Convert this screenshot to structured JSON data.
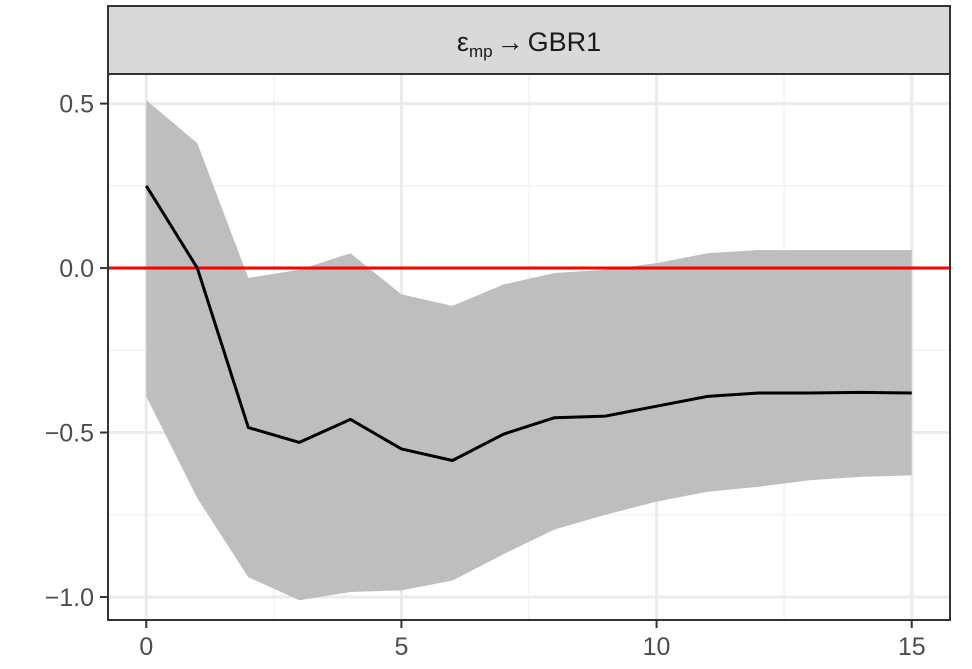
{
  "chart_data": {
    "type": "line",
    "facet_label": {
      "symbol": "ε",
      "subscript": "mp",
      "arrow": "→",
      "target": "GBR1"
    },
    "title": "",
    "xlabel": "",
    "ylabel": "",
    "x": [
      0,
      1,
      2,
      3,
      4,
      5,
      6,
      7,
      8,
      9,
      10,
      11,
      12,
      13,
      14,
      15
    ],
    "series": [
      {
        "values": [
          0.25,
          0.0,
          -0.485,
          -0.53,
          -0.46,
          -0.55,
          -0.585,
          -0.505,
          -0.455,
          -0.45,
          -0.42,
          -0.39,
          -0.38,
          -0.38,
          -0.378,
          -0.38
        ],
        "lower": [
          -0.39,
          -0.7,
          -0.94,
          -1.01,
          -0.985,
          -0.98,
          -0.95,
          -0.87,
          -0.795,
          -0.75,
          -0.71,
          -0.68,
          -0.665,
          -0.645,
          -0.635,
          -0.63
        ],
        "upper": [
          0.51,
          0.38,
          -0.03,
          -0.005,
          0.045,
          -0.08,
          -0.115,
          -0.05,
          -0.015,
          -0.005,
          0.015,
          0.045,
          0.055,
          0.055,
          0.055,
          0.055
        ]
      }
    ],
    "reference_line": {
      "y": 0,
      "color": "#ff0000"
    },
    "xlim": [
      -0.75,
      15.75
    ],
    "ylim": [
      -1.07,
      0.59
    ],
    "x_ticks": [
      0,
      5,
      10,
      15
    ],
    "x_tick_labels": [
      "0",
      "5",
      "10",
      "15"
    ],
    "y_ticks": [
      0.5,
      0.0,
      -0.5,
      -1.0
    ],
    "y_tick_labels": [
      "0.5",
      "0.0",
      "−0.5",
      "−1.0"
    ],
    "x_minor_ticks": [
      2.5,
      7.5,
      12.5
    ],
    "y_minor_ticks": [
      0.25,
      -0.25,
      -0.75
    ],
    "grid": true,
    "legend": "none",
    "colors": {
      "line": "#000000",
      "band": "#bebebe",
      "grid_major": "#ebebeb",
      "grid_minor": "#f3f3f3",
      "strip_fill": "#d9d9d9",
      "panel_border": "#333333"
    }
  }
}
